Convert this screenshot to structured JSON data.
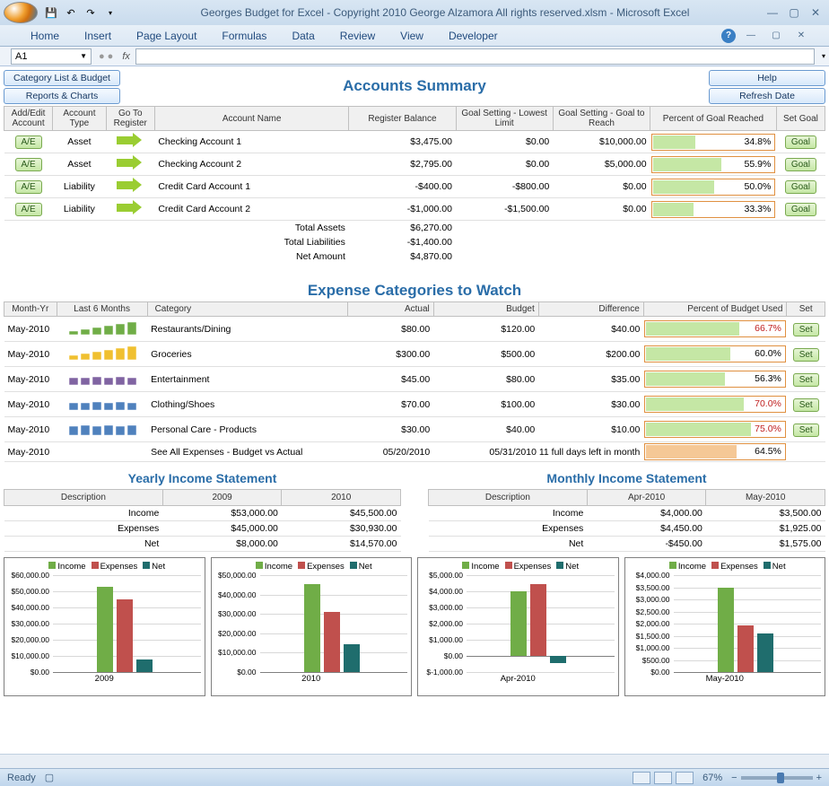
{
  "window": {
    "title": "Georges Budget for Excel - Copyright 2010  George Alzamora  All rights reserved.xlsm - Microsoft Excel"
  },
  "ribbon": {
    "tabs": [
      "Home",
      "Insert",
      "Page Layout",
      "Formulas",
      "Data",
      "Review",
      "View",
      "Developer"
    ]
  },
  "formula": {
    "name_box": "A1",
    "fx_label": "fx"
  },
  "buttons": {
    "category_list": "Category List & Budget",
    "reports": "Reports & Charts",
    "help": "Help",
    "refresh": "Refresh Date"
  },
  "accounts": {
    "title": "Accounts Summary",
    "headers": {
      "add_edit": "Add/Edit Account",
      "type": "Account Type",
      "goto": "Go To Register",
      "name": "Account Name",
      "balance": "Register Balance",
      "goal_low": "Goal Setting - Lowest Limit",
      "goal_reach": "Goal Setting - Goal to Reach",
      "pct": "Percent of Goal Reached",
      "set": "Set Goal"
    },
    "rows": [
      {
        "ae": "A/E",
        "type": "Asset",
        "num": "1",
        "name": "Checking Account 1",
        "balance": "$3,475.00",
        "low": "$0.00",
        "reach": "$10,000.00",
        "pct": 34.8,
        "pct_text": "34.8%"
      },
      {
        "ae": "A/E",
        "type": "Asset",
        "num": "2",
        "name": "Checking Account 2",
        "balance": "$2,795.00",
        "low": "$0.00",
        "reach": "$5,000.00",
        "pct": 55.9,
        "pct_text": "55.9%"
      },
      {
        "ae": "A/E",
        "type": "Liability",
        "num": "3",
        "name": "Credit Card Account 1",
        "balance": "-$400.00",
        "low": "-$800.00",
        "reach": "$0.00",
        "pct": 50.0,
        "pct_text": "50.0%"
      },
      {
        "ae": "A/E",
        "type": "Liability",
        "num": "4",
        "name": "Credit Card Account 2",
        "balance": "-$1,000.00",
        "low": "-$1,500.00",
        "reach": "$0.00",
        "pct": 33.3,
        "pct_text": "33.3%"
      }
    ],
    "totals": [
      {
        "label": "Total Assets",
        "value": "$6,270.00"
      },
      {
        "label": "Total Liabilities",
        "value": "-$1,400.00"
      },
      {
        "label": "Net Amount",
        "value": "$4,870.00"
      }
    ],
    "goal_btn": "Goal"
  },
  "expense": {
    "title": "Expense Categories to Watch",
    "headers": {
      "month": "Month-Yr",
      "last6": "Last 6 Months",
      "category": "Category",
      "actual": "Actual",
      "budget": "Budget",
      "diff": "Difference",
      "pct": "Percent of Budget Used",
      "set": "Set"
    },
    "rows": [
      {
        "month": "May-2010",
        "spark_color": "#70ad47",
        "spark_vals": [
          4,
          6,
          8,
          10,
          12,
          14
        ],
        "cat": "Restaurants/Dining",
        "actual": "$80.00",
        "budget": "$120.00",
        "diff": "$40.00",
        "pct": 66.7,
        "pct_text": "66.7%",
        "red": true
      },
      {
        "month": "May-2010",
        "spark_color": "#f0c030",
        "spark_vals": [
          5,
          7,
          9,
          11,
          13,
          15
        ],
        "cat": "Groceries",
        "actual": "$300.00",
        "budget": "$500.00",
        "diff": "$200.00",
        "pct": 60.0,
        "pct_text": "60.0%",
        "red": false
      },
      {
        "month": "May-2010",
        "spark_color": "#8064a2",
        "spark_vals": [
          8,
          8,
          9,
          8,
          9,
          8
        ],
        "cat": "Entertainment",
        "actual": "$45.00",
        "budget": "$80.00",
        "diff": "$35.00",
        "pct": 56.3,
        "pct_text": "56.3%",
        "red": false
      },
      {
        "month": "May-2010",
        "spark_color": "#4f81bd",
        "spark_vals": [
          8,
          8,
          9,
          8,
          9,
          8
        ],
        "cat": "Clothing/Shoes",
        "actual": "$70.00",
        "budget": "$100.00",
        "diff": "$30.00",
        "pct": 70.0,
        "pct_text": "70.0%",
        "red": true
      },
      {
        "month": "May-2010",
        "spark_color": "#4f81bd",
        "spark_vals": [
          10,
          11,
          10,
          11,
          10,
          11
        ],
        "cat": "Personal Care - Products",
        "actual": "$30.00",
        "budget": "$40.00",
        "diff": "$10.00",
        "pct": 75.0,
        "pct_text": "75.0%",
        "red": true
      }
    ],
    "summary": {
      "month": "May-2010",
      "cat": "See All Expenses - Budget vs Actual",
      "actual": "05/20/2010",
      "budget": "05/31/2010 11 full days left in month",
      "pct": 64.5,
      "pct_text": "64.5%"
    },
    "set_btn": "Set"
  },
  "income": {
    "yearly_title": "Yearly Income Statement",
    "monthly_title": "Monthly Income Statement",
    "desc_label": "Description",
    "rows_labels": [
      "Income",
      "Expenses",
      "Net"
    ],
    "yearly": {
      "cols": [
        "2009",
        "2010"
      ],
      "data": [
        [
          "$53,000.00",
          "$45,500.00"
        ],
        [
          "$45,000.00",
          "$30,930.00"
        ],
        [
          "$8,000.00",
          "$14,570.00"
        ]
      ]
    },
    "monthly": {
      "cols": [
        "Apr-2010",
        "May-2010"
      ],
      "data": [
        [
          "$4,000.00",
          "$3,500.00"
        ],
        [
          "$4,450.00",
          "$1,925.00"
        ],
        [
          "-$450.00",
          "$1,575.00"
        ]
      ]
    }
  },
  "charts": {
    "legend": [
      "Income",
      "Expenses",
      "Net"
    ],
    "colors": {
      "income": "#70ad47",
      "expenses": "#c0504d",
      "net": "#1f6d6d"
    },
    "items": [
      {
        "label": "2009",
        "ymax": 60000,
        "ymin": 0,
        "ystep": 10000,
        "yfmt": "$",
        "bars": [
          {
            "v": 53000,
            "c": "#70ad47"
          },
          {
            "v": 45000,
            "c": "#c0504d"
          },
          {
            "v": 8000,
            "c": "#1f6d6d"
          }
        ]
      },
      {
        "label": "2010",
        "ymax": 50000,
        "ymin": 0,
        "ystep": 10000,
        "yfmt": "$",
        "bars": [
          {
            "v": 45500,
            "c": "#70ad47"
          },
          {
            "v": 30930,
            "c": "#c0504d"
          },
          {
            "v": 14570,
            "c": "#1f6d6d"
          }
        ]
      },
      {
        "label": "Apr-2010",
        "ymax": 5000,
        "ymin": -1000,
        "ystep": 1000,
        "yfmt": "$",
        "bars": [
          {
            "v": 4000,
            "c": "#70ad47"
          },
          {
            "v": 4450,
            "c": "#c0504d"
          },
          {
            "v": -450,
            "c": "#1f6d6d"
          }
        ]
      },
      {
        "label": "May-2010",
        "ymax": 4000,
        "ymin": 0,
        "ystep": 500,
        "yfmt": "$",
        "bars": [
          {
            "v": 3500,
            "c": "#70ad47"
          },
          {
            "v": 1925,
            "c": "#c0504d"
          },
          {
            "v": 1575,
            "c": "#1f6d6d"
          }
        ]
      }
    ]
  },
  "status": {
    "ready": "Ready",
    "zoom": "67%"
  }
}
